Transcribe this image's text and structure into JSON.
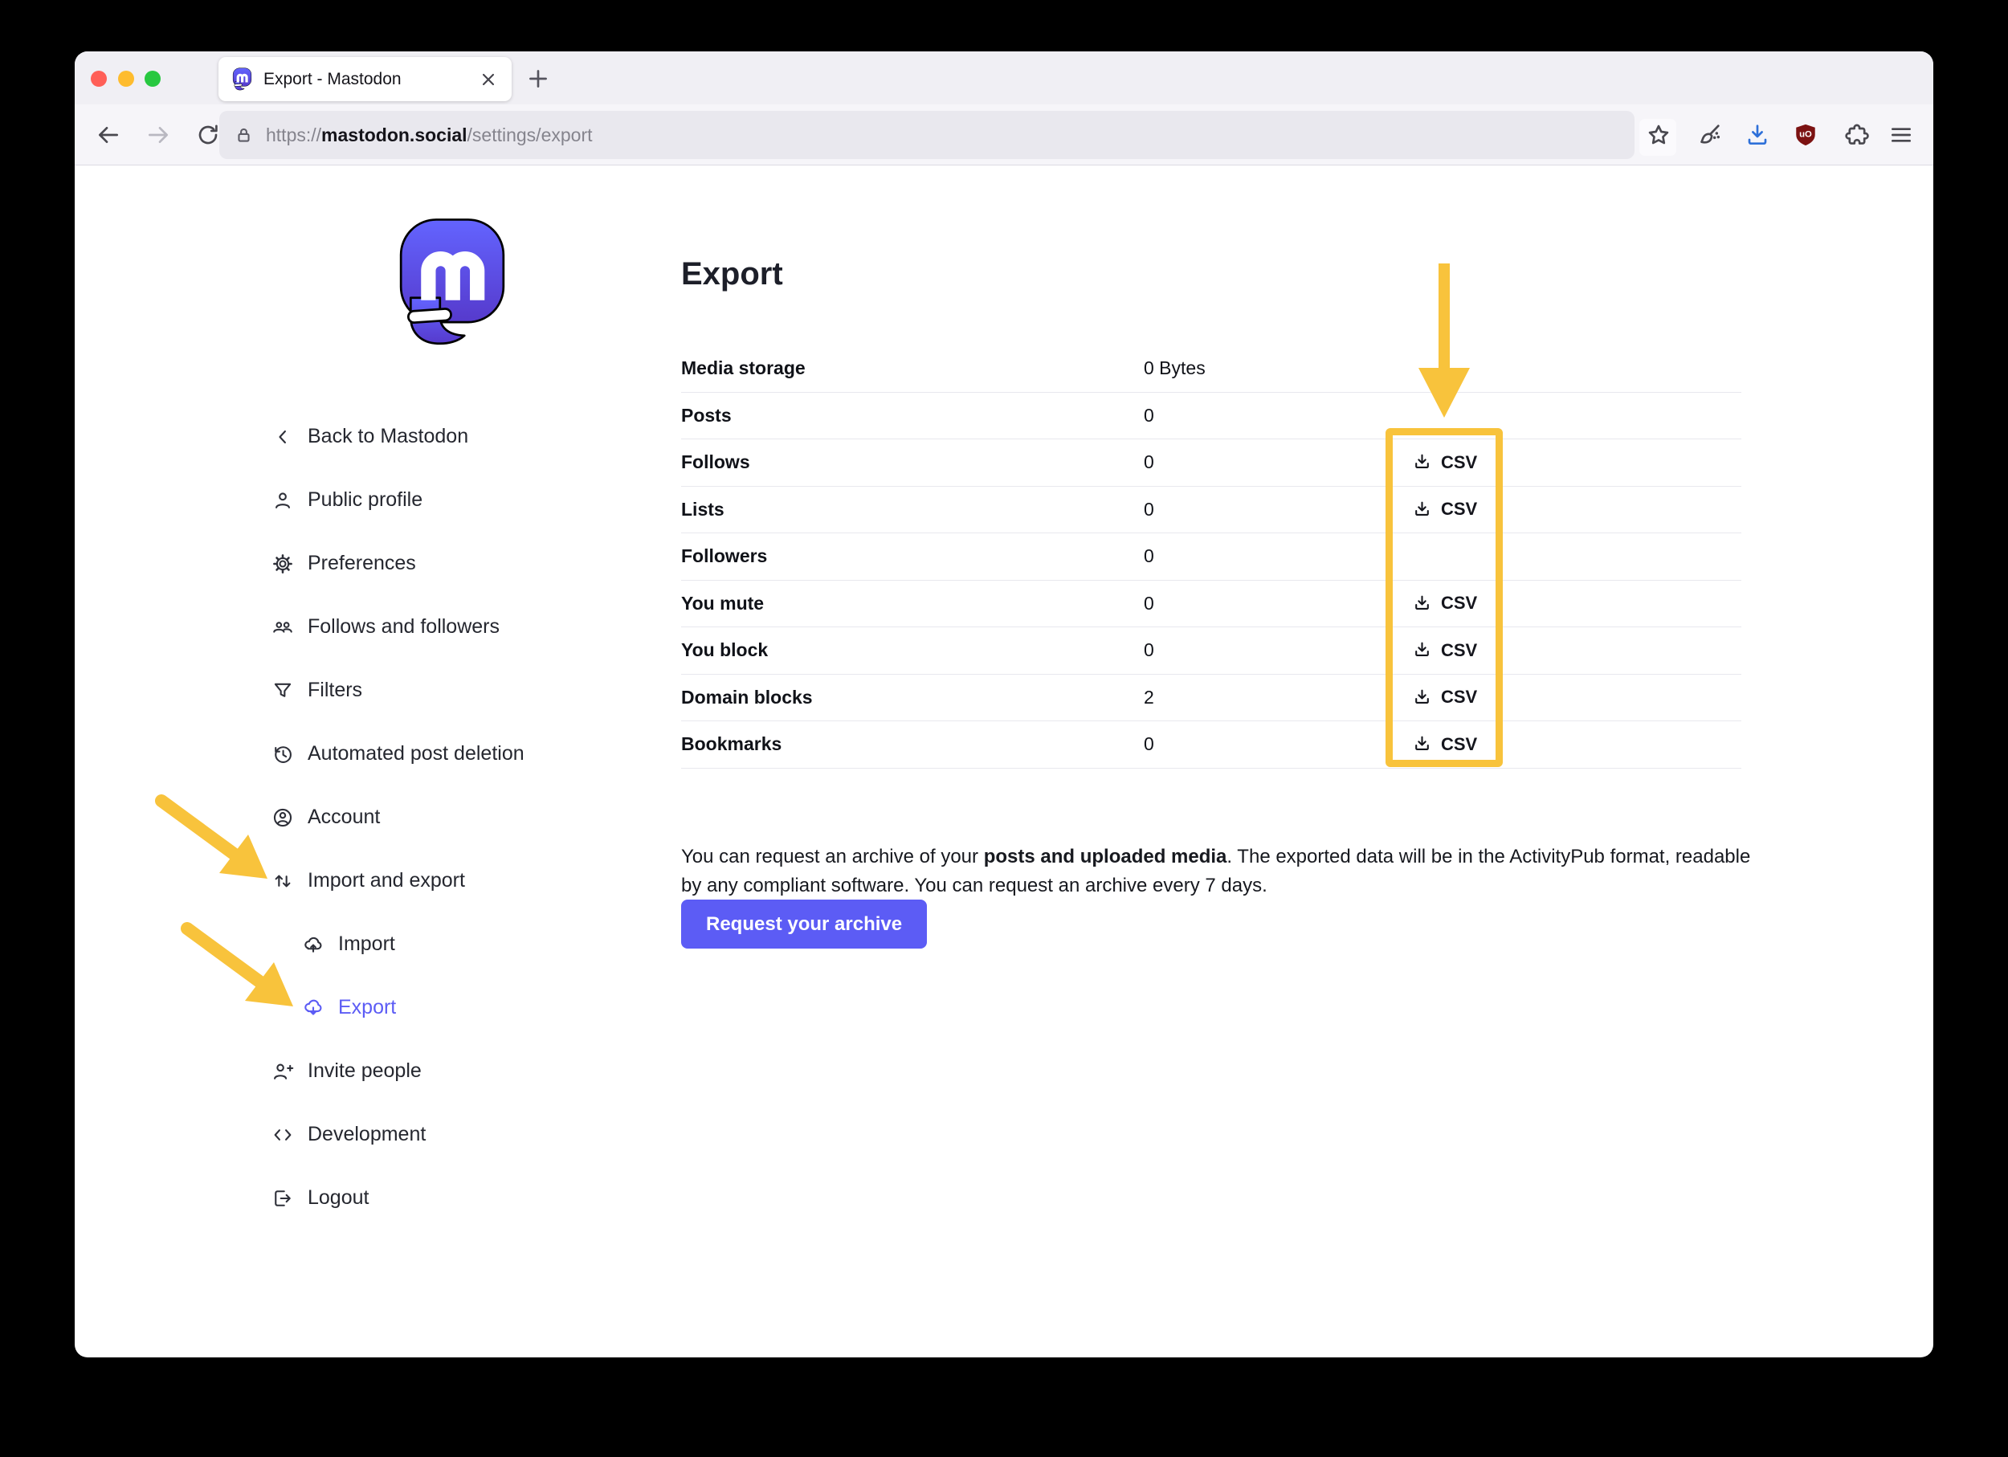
{
  "browser": {
    "tab_title": "Export - Mastodon",
    "url_scheme": "https://",
    "url_host": "mastodon.social",
    "url_path": "/settings/export",
    "toolbar_icons": [
      "back-icon",
      "forward-icon",
      "reload-icon",
      "home-icon",
      "lock-icon",
      "bookmark-star-icon",
      "broom-icon",
      "downloads-icon",
      "ublock-shield-icon",
      "extensions-puzzle-icon",
      "menu-icon"
    ]
  },
  "sidebar": {
    "items": [
      {
        "icon": "chevron-left-icon",
        "label": "Back to Mastodon",
        "indent": false,
        "active": false
      },
      {
        "icon": "person-icon",
        "label": "Public profile",
        "indent": false,
        "active": false
      },
      {
        "icon": "gear-icon",
        "label": "Preferences",
        "indent": false,
        "active": false
      },
      {
        "icon": "people-group-icon",
        "label": "Follows and followers",
        "indent": false,
        "active": false
      },
      {
        "icon": "filter-icon",
        "label": "Filters",
        "indent": false,
        "active": false
      },
      {
        "icon": "history-icon",
        "label": "Automated post deletion",
        "indent": false,
        "active": false
      },
      {
        "icon": "account-circle-icon",
        "label": "Account",
        "indent": false,
        "active": false
      },
      {
        "icon": "import-export-icon",
        "label": "Import and export",
        "indent": false,
        "active": false
      },
      {
        "icon": "cloud-upload-icon",
        "label": "Import",
        "indent": true,
        "active": false
      },
      {
        "icon": "cloud-download-icon",
        "label": "Export",
        "indent": true,
        "active": true
      },
      {
        "icon": "person-add-icon",
        "label": "Invite people",
        "indent": false,
        "active": false
      },
      {
        "icon": "code-icon",
        "label": "Development",
        "indent": false,
        "active": false
      },
      {
        "icon": "logout-icon",
        "label": "Logout",
        "indent": false,
        "active": false
      }
    ]
  },
  "main": {
    "title": "Export",
    "csv_label": "CSV",
    "table_rows": [
      {
        "label": "Media storage",
        "value": "0 Bytes",
        "csv": false
      },
      {
        "label": "Posts",
        "value": "0",
        "csv": false
      },
      {
        "label": "Follows",
        "value": "0",
        "csv": true
      },
      {
        "label": "Lists",
        "value": "0",
        "csv": true
      },
      {
        "label": "Followers",
        "value": "0",
        "csv": false
      },
      {
        "label": "You mute",
        "value": "0",
        "csv": true
      },
      {
        "label": "You block",
        "value": "0",
        "csv": true
      },
      {
        "label": "Domain blocks",
        "value": "2",
        "csv": true
      },
      {
        "label": "Bookmarks",
        "value": "0",
        "csv": true
      }
    ],
    "note": {
      "pre": "You can request an archive of your ",
      "bold": "posts and uploaded media",
      "post": ". The exported data will be in the ActivityPub format, readable by any compliant software. You can request an archive every 7 days."
    },
    "request_button_label": "Request your archive"
  },
  "colors": {
    "accent": "#5c5cf5",
    "brand_gradient_top": "#6364ff",
    "brand_gradient_bottom": "#563acc",
    "highlight": "#f8c33c",
    "download_blue": "#2e70d9",
    "shield_red": "#7c1212",
    "traffic_red": "#ff5f57",
    "traffic_yellow": "#febc2e",
    "traffic_green": "#28c840"
  }
}
